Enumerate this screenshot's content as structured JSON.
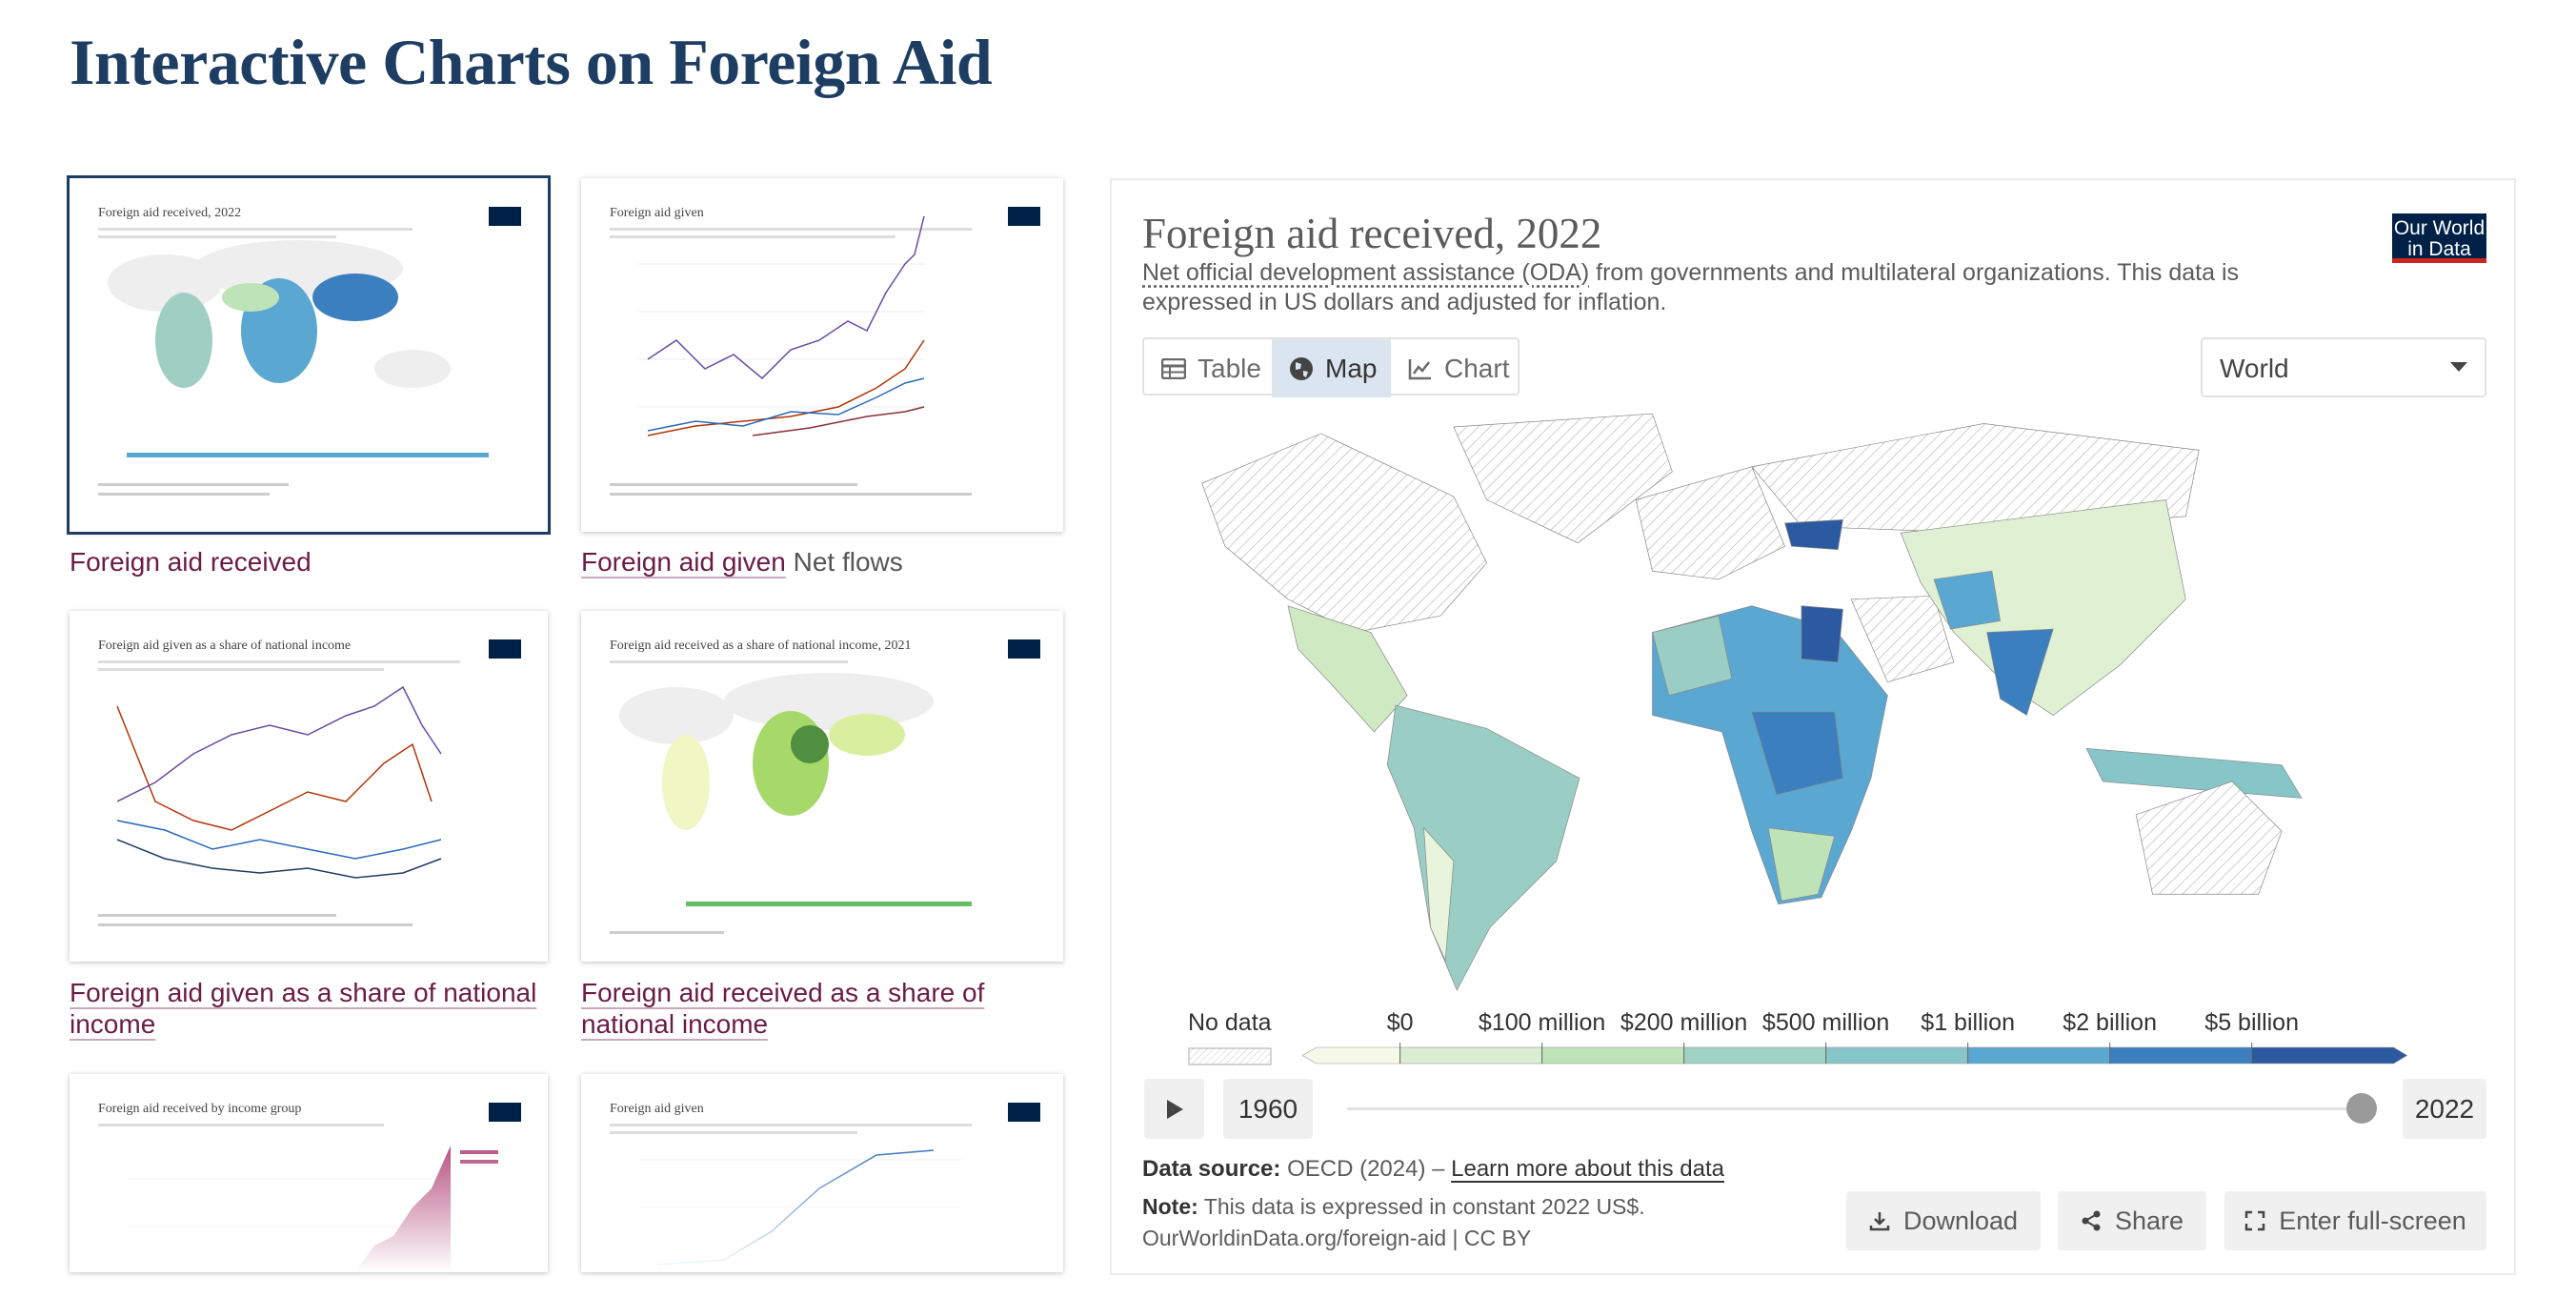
{
  "header": {
    "title": "Interactive Charts on Foreign Aid"
  },
  "logo": [
    "Our World",
    "in Data"
  ],
  "thumbnails": [
    {
      "chart_title": "Foreign aid received, 2022",
      "caption": "Foreign aid received"
    },
    {
      "chart_title": "Foreign aid given",
      "caption": "Foreign aid given",
      "caption_extra": "Net flows"
    },
    {
      "chart_title": "Foreign aid given as a share of national income",
      "caption": "Foreign aid given as a share of national income"
    },
    {
      "chart_title": "Foreign aid received as a share of national income, 2021",
      "caption": "Foreign aid received as a share of national income"
    },
    {
      "chart_title": "Foreign aid received by income group"
    },
    {
      "chart_title": "Foreign aid given"
    }
  ],
  "panel": {
    "title": "Foreign aid received, 2022",
    "subtitle_link": "Net official development assistance (ODA)",
    "subtitle_rest": "from governments and multilateral organizations. This data is expressed in US dollars and adjusted for inflation.",
    "tabs": [
      "Table",
      "Map",
      "Chart"
    ],
    "region": "World",
    "legend": {
      "no_data": "No data",
      "labels": [
        "$0",
        "$100 million",
        "$200 million",
        "$500 million",
        "$1 billion",
        "$2 billion",
        "$5 billion"
      ]
    },
    "timeline": {
      "start": "1960",
      "end": "2022"
    },
    "source_label": "Data source:",
    "source": "OECD (2024) –",
    "source_link": "Learn more about this data",
    "note_label": "Note:",
    "note": "This data is expressed in constant 2022 US$.",
    "url": "OurWorldinData.org/foreign-aid | CC BY",
    "buttons": [
      "Download",
      "Share",
      "Enter full-screen"
    ]
  }
}
